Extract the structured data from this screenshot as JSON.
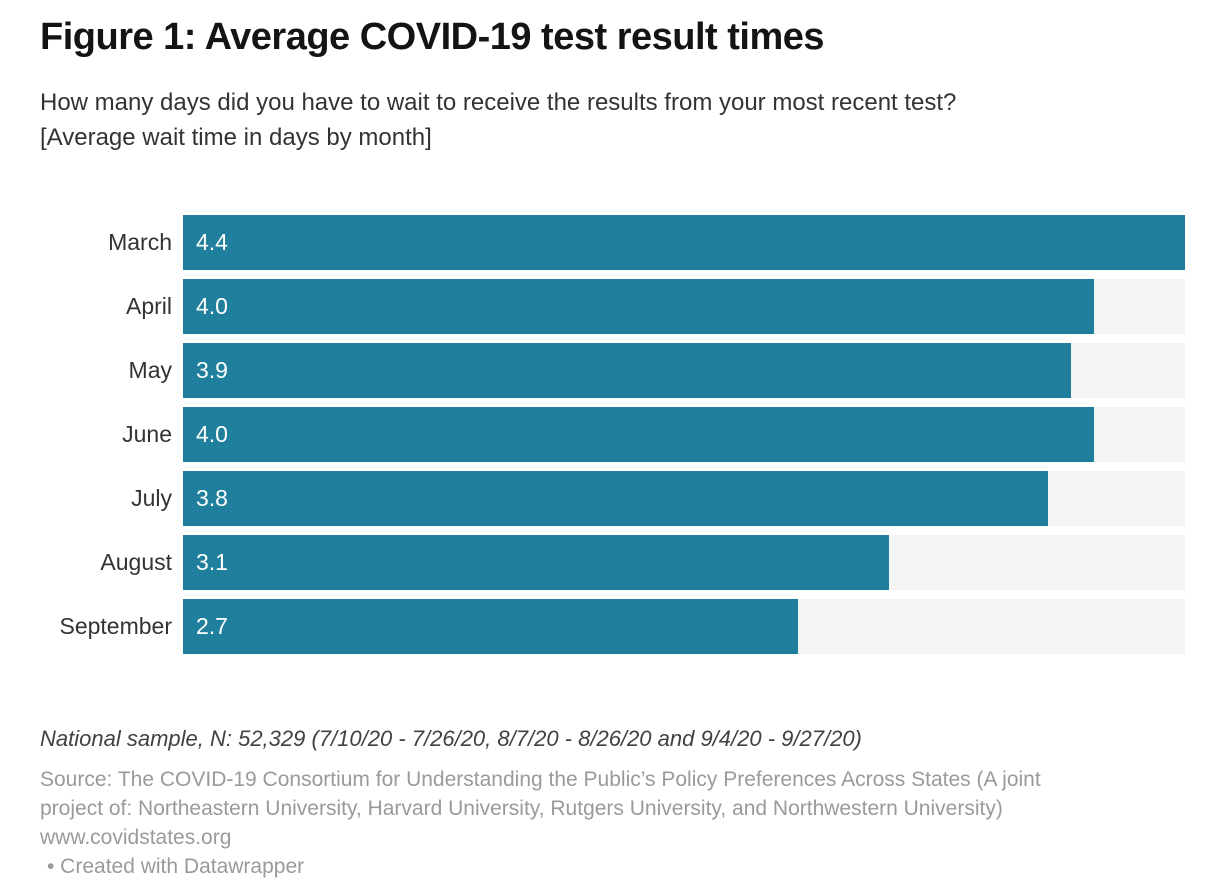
{
  "header": {
    "title": "Figure 1: Average COVID-19 test result times",
    "subtitle_lines": [
      "How many days did you have to wait to receive the results from your most recent test?",
      "[Average wait time in days by month]"
    ]
  },
  "chart_data": {
    "type": "bar",
    "orientation": "horizontal",
    "title": "Figure 1: Average COVID-19 test result times",
    "subtitle": "How many days did you have to wait to receive the results from your most recent test? [Average wait time in days by month]",
    "categories": [
      "March",
      "April",
      "May",
      "June",
      "July",
      "August",
      "September"
    ],
    "values": [
      4.4,
      4.0,
      3.9,
      4.0,
      3.8,
      3.1,
      2.7
    ],
    "value_labels": [
      "4.4",
      "4.0",
      "3.9",
      "4.0",
      "3.8",
      "3.1",
      "2.7"
    ],
    "xlabel": "",
    "ylabel": "",
    "unit": "days",
    "xlim": [
      0,
      4.4
    ],
    "grid": false,
    "legend": false,
    "bar_color": "#1f7f9c",
    "track_color": "#f4f4f4",
    "value_label_color": "#ffffff"
  },
  "footer": {
    "note": "National sample, N: 52,329 (7/10/20 - 7/26/20, 8/7/20 - 8/26/20 and 9/4/20 - 9/27/20)",
    "source_lines": [
      "Source: The COVID-19 Consortium for Understanding the Public’s Policy Preferences Across States (A joint",
      "project of: Northeastern University, Harvard University, Rutgers University, and Northwestern University)",
      "www.covidstates.org"
    ],
    "attribution": "• Created with Datawrapper"
  }
}
